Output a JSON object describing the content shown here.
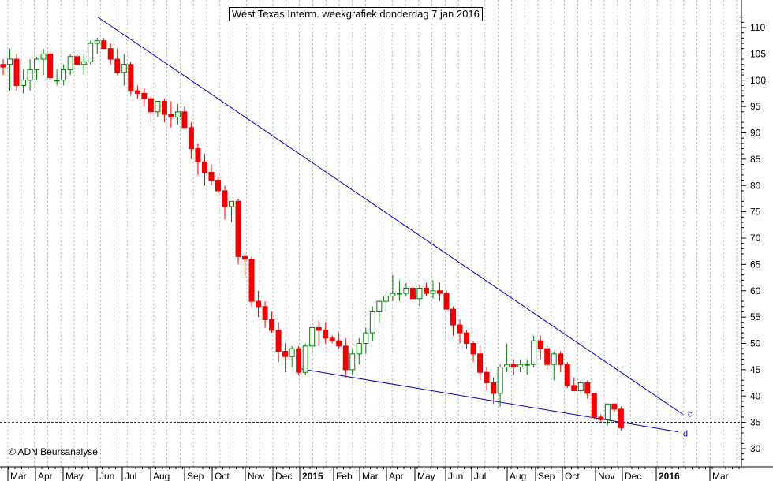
{
  "chart_data": {
    "type": "candlestick",
    "title": "West Texas Interm. weekgrafiek donderdag 7 jan 2016",
    "source": "© ADN Beursanalyse",
    "ylim": [
      27,
      113
    ],
    "y_ticks": [
      30,
      35,
      40,
      45,
      50,
      55,
      60,
      65,
      70,
      75,
      80,
      85,
      90,
      95,
      100,
      105,
      110
    ],
    "x_labels": [
      "Mar",
      "Apr",
      "May",
      "Jun",
      "Jul",
      "Aug",
      "Sep",
      "Oct",
      "Nov",
      "Dec",
      "2015",
      "Feb",
      "Mar",
      "Apr",
      "May",
      "Jun",
      "Jul",
      "Aug",
      "Sep",
      "Oct",
      "Nov",
      "Dec",
      "2016",
      "Mar"
    ],
    "x_labels_bold": [
      "2015",
      "2016"
    ],
    "support_level": 35,
    "grid": true,
    "colors": {
      "up": "#008000",
      "down": "#ee0000",
      "trendline": "#0000cc",
      "grid": "#b0b0b0"
    },
    "trendlines": [
      {
        "label": "c",
        "from": [
          0,
          112
        ],
        "to": [
          109,
          36.5
        ]
      },
      {
        "label": "d",
        "from": [
          46,
          45.2
        ],
        "to": [
          109,
          33.2
        ]
      }
    ],
    "candles": [
      [
        103,
        104,
        101,
        102.5
      ],
      [
        103,
        106,
        98,
        104
      ],
      [
        104,
        105,
        98,
        99
      ],
      [
        99,
        102,
        97.5,
        100
      ],
      [
        100,
        104,
        98,
        102
      ],
      [
        102,
        104.5,
        100,
        104
      ],
      [
        104,
        106,
        101,
        105
      ],
      [
        105,
        106,
        100,
        100.5
      ],
      [
        100,
        102,
        99,
        100
      ],
      [
        100,
        103,
        99,
        102
      ],
      [
        102,
        105,
        101,
        104.5
      ],
      [
        104.5,
        105,
        103,
        103
      ],
      [
        103,
        105,
        101,
        103.5
      ],
      [
        103.5,
        107.5,
        103,
        107
      ],
      [
        107,
        108,
        105,
        107.5
      ],
      [
        107.5,
        108,
        106,
        106
      ],
      [
        106,
        107,
        103,
        104
      ],
      [
        104,
        106,
        101,
        101.5
      ],
      [
        101.5,
        105,
        99,
        103
      ],
      [
        103,
        103.5,
        97,
        98
      ],
      [
        98,
        99,
        96.5,
        97.5
      ],
      [
        97.5,
        98.5,
        95,
        96.5
      ],
      [
        96.5,
        97,
        92,
        94
      ],
      [
        94,
        96,
        93,
        96
      ],
      [
        96,
        96.5,
        92,
        93.5
      ],
      [
        93.5,
        96,
        91,
        93
      ],
      [
        93,
        95.5,
        91.5,
        94
      ],
      [
        94,
        95,
        91.5,
        91
      ],
      [
        91,
        92,
        85,
        87
      ],
      [
        87,
        88,
        82,
        84.5
      ],
      [
        84.5,
        86,
        80,
        82.5
      ],
      [
        82.5,
        84,
        80,
        81
      ],
      [
        81,
        82,
        78.5,
        79
      ],
      [
        79,
        80,
        73.5,
        76
      ],
      [
        76,
        77,
        73,
        77
      ],
      [
        77,
        77.5,
        65,
        66.5
      ],
      [
        66.5,
        67,
        63,
        66
      ],
      [
        66,
        66.5,
        57,
        58
      ],
      [
        58,
        60,
        55,
        57
      ],
      [
        57,
        58,
        53,
        54.5
      ],
      [
        54.5,
        56,
        52,
        52.5
      ],
      [
        52.5,
        54,
        46.5,
        48.5
      ],
      [
        48.5,
        50,
        44.5,
        47.5
      ],
      [
        47.5,
        49.5,
        45.5,
        49
      ],
      [
        49,
        49.5,
        44,
        44.5
      ],
      [
        44.5,
        50,
        44,
        49.5
      ],
      [
        49.5,
        54,
        48,
        53
      ],
      [
        53,
        54.5,
        49.5,
        52.5
      ],
      [
        52.5,
        54,
        50,
        51
      ],
      [
        51,
        51.5,
        50,
        50.5
      ],
      [
        50.5,
        52,
        49,
        49.5
      ],
      [
        49.5,
        51,
        43.5,
        45
      ],
      [
        45,
        49,
        44,
        48
      ],
      [
        48,
        51,
        46,
        50
      ],
      [
        50,
        53,
        48,
        52
      ],
      [
        52,
        57,
        50.5,
        56
      ],
      [
        56,
        58,
        54,
        58
      ],
      [
        58,
        59.5,
        56,
        59
      ],
      [
        59,
        63,
        58,
        59.5
      ],
      [
        59.5,
        62,
        58,
        59.5
      ],
      [
        59.5,
        61.5,
        59,
        60.5
      ],
      [
        60.5,
        62,
        59,
        58.5
      ],
      [
        58.5,
        61,
        57,
        60.5
      ],
      [
        60.5,
        61.5,
        59,
        59.5
      ],
      [
        59.5,
        62,
        58.5,
        60
      ],
      [
        60,
        61.5,
        58,
        59.5
      ],
      [
        59.5,
        60,
        56.5,
        56.5
      ],
      [
        56.5,
        57,
        51.5,
        53.5
      ],
      [
        53.5,
        54.5,
        50,
        52
      ],
      [
        52,
        52.5,
        49,
        50
      ],
      [
        50,
        50.5,
        46.5,
        48
      ],
      [
        48,
        49.5,
        43,
        44.5
      ],
      [
        44.5,
        45.5,
        41,
        42.5
      ],
      [
        42.5,
        43.5,
        38.5,
        40.5
      ],
      [
        40.5,
        46,
        38,
        45.5
      ],
      [
        45.5,
        50,
        44.5,
        46
      ],
      [
        46,
        47,
        44,
        45.5
      ],
      [
        45.5,
        47,
        44.5,
        46
      ],
      [
        46,
        47,
        44,
        46
      ],
      [
        46,
        51.5,
        45.5,
        50.5
      ],
      [
        50.5,
        51.5,
        47,
        49
      ],
      [
        49,
        49.5,
        45,
        46
      ],
      [
        46,
        48.5,
        43,
        48
      ],
      [
        48,
        48.5,
        44.5,
        46
      ],
      [
        46,
        46.5,
        41.5,
        42
      ],
      [
        42,
        43.5,
        41,
        41
      ],
      [
        41,
        43,
        40.5,
        42.5
      ],
      [
        42.5,
        43,
        39.5,
        40.5
      ],
      [
        40.5,
        40.5,
        35.5,
        36
      ],
      [
        36,
        36.5,
        35,
        35.5
      ],
      [
        35.5,
        38.5,
        34.5,
        38.5
      ],
      [
        38.5,
        38.5,
        37,
        37.5
      ],
      [
        37.5,
        38,
        33.5,
        34
      ]
    ]
  }
}
